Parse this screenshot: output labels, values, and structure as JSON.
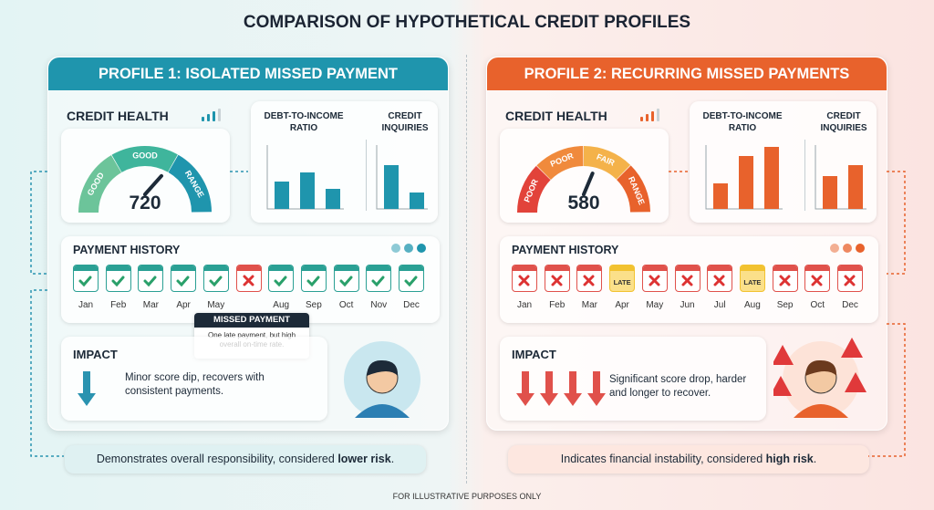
{
  "title": "COMPARISON OF HYPOTHETICAL CREDIT PROFILES",
  "profiles": [
    {
      "title": "PROFILE 1: ISOLATED MISSED PAYMENT",
      "color": "#1f95ad",
      "credit_health": {
        "label": "CREDIT HEALTH",
        "gauge_labels": [
          "GOOD",
          "GOOD",
          "RANGE"
        ],
        "score": "720"
      },
      "ratios": {
        "dti_label": "DEBT-TO-INCOME RATIO",
        "inquiries_label": "CREDIT INQUIRIES"
      },
      "payment_history": {
        "label": "PAYMENT HISTORY",
        "months": [
          {
            "month": "Jan",
            "status": "paid"
          },
          {
            "month": "Feb",
            "status": "paid"
          },
          {
            "month": "Mar",
            "status": "paid"
          },
          {
            "month": "Apr",
            "status": "paid"
          },
          {
            "month": "May",
            "status": "paid"
          },
          {
            "month": null,
            "status": "missed"
          },
          {
            "month": "Aug",
            "status": "paid"
          },
          {
            "month": "Sep",
            "status": "paid"
          },
          {
            "month": "Oct",
            "status": "paid"
          },
          {
            "month": "Nov",
            "status": "paid"
          },
          {
            "month": "Dec",
            "status": "paid"
          }
        ]
      },
      "callout": {
        "title": "MISSED PAYMENT",
        "text": "One late payment, but high overall on-time rate."
      },
      "impact": {
        "label": "IMPACT",
        "text": "Minor score dip, recovers with consistent payments."
      },
      "summary": [
        "Demonstrates overall responsibility, considered ",
        "lower risk",
        "."
      ]
    },
    {
      "title": "PROFILE 2: RECURRING MISSED PAYMENTS",
      "color": "#e8622c",
      "credit_health": {
        "label": "CREDIT HEALTH",
        "gauge_labels": [
          "POOR",
          "POOR",
          "FAIR",
          "RANGE"
        ],
        "score": "580"
      },
      "ratios": {
        "dti_label": "DEBT-TO-INCOME RATIO",
        "inquiries_label": "CREDIT INQUIRIES"
      },
      "payment_history": {
        "label": "PAYMENT HISTORY",
        "months": [
          {
            "month": "Jan",
            "status": "missed"
          },
          {
            "month": "Feb",
            "status": "missed"
          },
          {
            "month": "Mar",
            "status": "missed"
          },
          {
            "month": "Apr",
            "status": "LATE"
          },
          {
            "month": "May",
            "status": "missed"
          },
          {
            "month": "Jun",
            "status": "missed"
          },
          {
            "month": "Jul",
            "status": "missed"
          },
          {
            "month": "Aug",
            "status": "LATE"
          },
          {
            "month": "Sep",
            "status": "missed"
          },
          {
            "month": "Oct",
            "status": "missed"
          },
          {
            "month": "Dec",
            "status": "missed"
          }
        ]
      },
      "impact": {
        "label": "IMPACT",
        "text": "Significant score drop, harder and longer to recover."
      },
      "summary": [
        "Indicates financial instability, considered ",
        "high risk",
        "."
      ]
    }
  ],
  "footer": "FOR ILLUSTRATIVE PURPOSES ONLY"
}
